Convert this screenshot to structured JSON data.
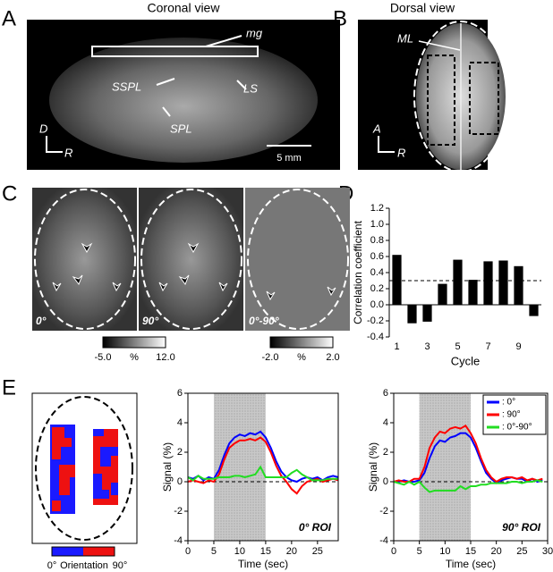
{
  "figure": {
    "panel_labels": [
      "A",
      "B",
      "C",
      "D",
      "E"
    ],
    "A": {
      "title": "Coronal view",
      "labels": [
        "mg",
        "SSPL",
        "LS",
        "SPL"
      ],
      "axes": [
        "D",
        "R"
      ],
      "scale": "5 mm"
    },
    "B": {
      "title": "Dorsal view",
      "labels": [
        "ML"
      ],
      "axes": [
        "A",
        "R"
      ]
    },
    "C": {
      "image_labels": [
        "0°",
        "90°",
        "0°-90°"
      ],
      "colorbars": [
        {
          "min": "-5.0",
          "unit": "%",
          "max": "12.0"
        },
        {
          "min": "-2.0",
          "unit": "%",
          "max": "2.0"
        }
      ]
    },
    "E": {
      "colorbar": {
        "min": "0°",
        "title": "Orientation",
        "max": "90°"
      }
    }
  },
  "chart_data": [
    {
      "type": "bar",
      "ylabel": "Correlation coefficient",
      "xlabel": "Cycle",
      "categories": [
        "1",
        null,
        "3",
        null,
        "5",
        null,
        "7",
        null,
        "9",
        null
      ],
      "values": [
        0.62,
        -0.23,
        -0.21,
        0.26,
        0.56,
        0.31,
        0.54,
        0.55,
        0.48,
        -0.14
      ],
      "color": "#000000",
      "threshold": 0.3,
      "ylim": [
        -0.4,
        1.2
      ],
      "yticks": [
        -0.4,
        -0.2,
        {
          "value": 0,
          "label": "0.0"
        },
        0.2,
        0.4,
        0.6,
        0.8,
        {
          "value": 1,
          "label": "1.0"
        },
        1.2
      ]
    },
    {
      "type": "line",
      "annotation": "0° ROI",
      "xlabel": "Time (sec)",
      "ylabel": "Signal (%)",
      "shade": [
        5,
        15
      ],
      "x": [
        0,
        1,
        2,
        3,
        4,
        5,
        6,
        7,
        8,
        9,
        10,
        11,
        12,
        13,
        14,
        15,
        16,
        17,
        18,
        19,
        20,
        21,
        22,
        23,
        24,
        25,
        26,
        27,
        28,
        29
      ],
      "series": [
        {
          "color": "#0000ff",
          "values": [
            0.3,
            0.2,
            0.4,
            0.1,
            0.3,
            0.2,
            0.8,
            1.8,
            2.6,
            3.0,
            3.2,
            3.1,
            3.3,
            3.2,
            3.4,
            3.0,
            2.3,
            1.4,
            0.7,
            0.3,
            0.1,
            0.0,
            0.2,
            0.3,
            0.2,
            0.3,
            0.1,
            0.3,
            0.4,
            0.3
          ]
        },
        {
          "color": "#ff0000",
          "values": [
            0.0,
            0.1,
            0.0,
            -0.1,
            0.1,
            0.0,
            0.5,
            1.5,
            2.3,
            2.6,
            2.8,
            2.8,
            2.9,
            2.8,
            3.0,
            2.7,
            2.0,
            1.1,
            0.4,
            0.0,
            -0.5,
            -0.8,
            -0.3,
            0.0,
            0.1,
            0.2,
            0.0,
            0.1,
            0.2,
            0.1
          ]
        },
        {
          "color": "#22dd22",
          "values": [
            0.3,
            0.1,
            0.4,
            0.2,
            0.2,
            0.2,
            0.3,
            0.3,
            0.3,
            0.4,
            0.4,
            0.3,
            0.4,
            0.5,
            1.0,
            0.3,
            0.3,
            0.3,
            0.3,
            0.3,
            0.6,
            0.8,
            0.5,
            0.3,
            0.1,
            0.1,
            0.1,
            0.2,
            0.2,
            0.2
          ]
        }
      ],
      "xlim": [
        0,
        29
      ],
      "xticks": [
        0,
        5,
        10,
        15,
        20,
        25
      ],
      "ylim": [
        -4,
        6
      ],
      "yticks": [
        -4,
        -2,
        0,
        2,
        4,
        6
      ]
    },
    {
      "type": "line",
      "annotation": "90° ROI",
      "xlabel": "Time (sec)",
      "ylabel": "Signal (%)",
      "shade": [
        5,
        15
      ],
      "legend": "upper right",
      "x": [
        0,
        1,
        2,
        3,
        4,
        5,
        6,
        7,
        8,
        9,
        10,
        11,
        12,
        13,
        14,
        15,
        16,
        17,
        18,
        19,
        20,
        21,
        22,
        23,
        24,
        25,
        26,
        27,
        28,
        29
      ],
      "series": [
        {
          "name": ": 0°",
          "color": "#0000ff",
          "values": [
            0.0,
            0.0,
            0.1,
            0.0,
            0.0,
            0.1,
            0.6,
            1.6,
            2.4,
            2.8,
            2.7,
            3.0,
            3.1,
            3.3,
            3.3,
            3.0,
            2.3,
            1.4,
            0.6,
            0.2,
            -0.1,
            0.1,
            0.2,
            0.3,
            0.2,
            0.2,
            0.0,
            0.2,
            0.0,
            0.1
          ]
        },
        {
          "name": ": 90°",
          "color": "#ff0000",
          "values": [
            0.0,
            0.1,
            0.0,
            0.0,
            0.2,
            0.2,
            1.0,
            2.3,
            3.0,
            3.4,
            3.3,
            3.6,
            3.7,
            3.6,
            3.8,
            3.3,
            2.6,
            1.6,
            0.8,
            0.3,
            0.0,
            0.2,
            0.3,
            0.3,
            0.2,
            0.3,
            0.1,
            0.2,
            0.1,
            0.2
          ]
        },
        {
          "name": ": 0°-90°",
          "color": "#22dd22",
          "values": [
            0.0,
            -0.1,
            -0.2,
            0.0,
            -0.2,
            0.0,
            -0.4,
            -0.7,
            -0.6,
            -0.6,
            -0.6,
            -0.6,
            -0.6,
            -0.3,
            -0.5,
            -0.3,
            -0.3,
            -0.2,
            -0.2,
            -0.1,
            -0.1,
            -0.1,
            -0.1,
            0.0,
            0.0,
            -0.1,
            0.0,
            0.0,
            0.1,
            0.0
          ]
        }
      ],
      "xlim": [
        0,
        30
      ],
      "xticks": [
        0,
        5,
        10,
        15,
        20,
        25,
        30
      ],
      "ylim": [
        -4,
        6
      ],
      "yticks": [
        -4,
        -2,
        0,
        2,
        4,
        6
      ]
    }
  ]
}
